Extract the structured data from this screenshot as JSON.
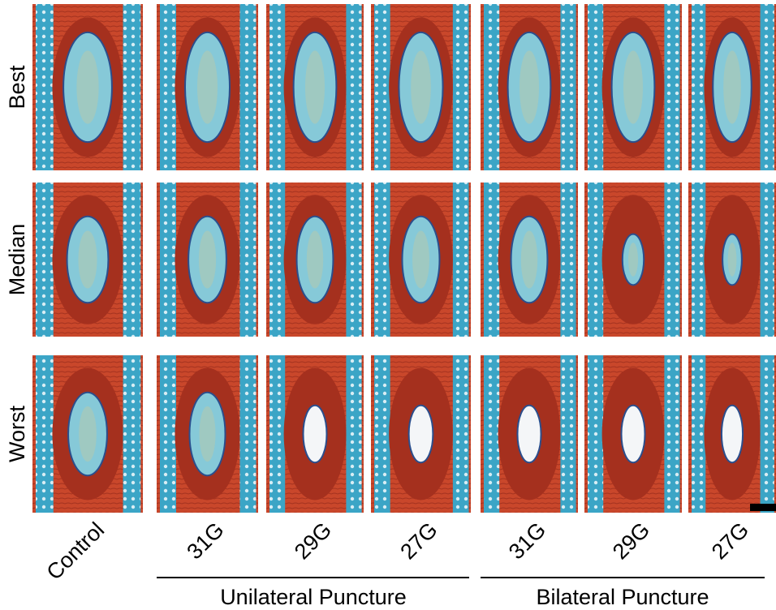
{
  "row_labels": [
    "Best",
    "Median",
    "Worst"
  ],
  "column_labels": [
    "Control",
    "31G",
    "29G",
    "27G",
    "31G",
    "29G",
    "27G"
  ],
  "groups": [
    "Unilateral Puncture",
    "Bilateral Puncture"
  ]
}
